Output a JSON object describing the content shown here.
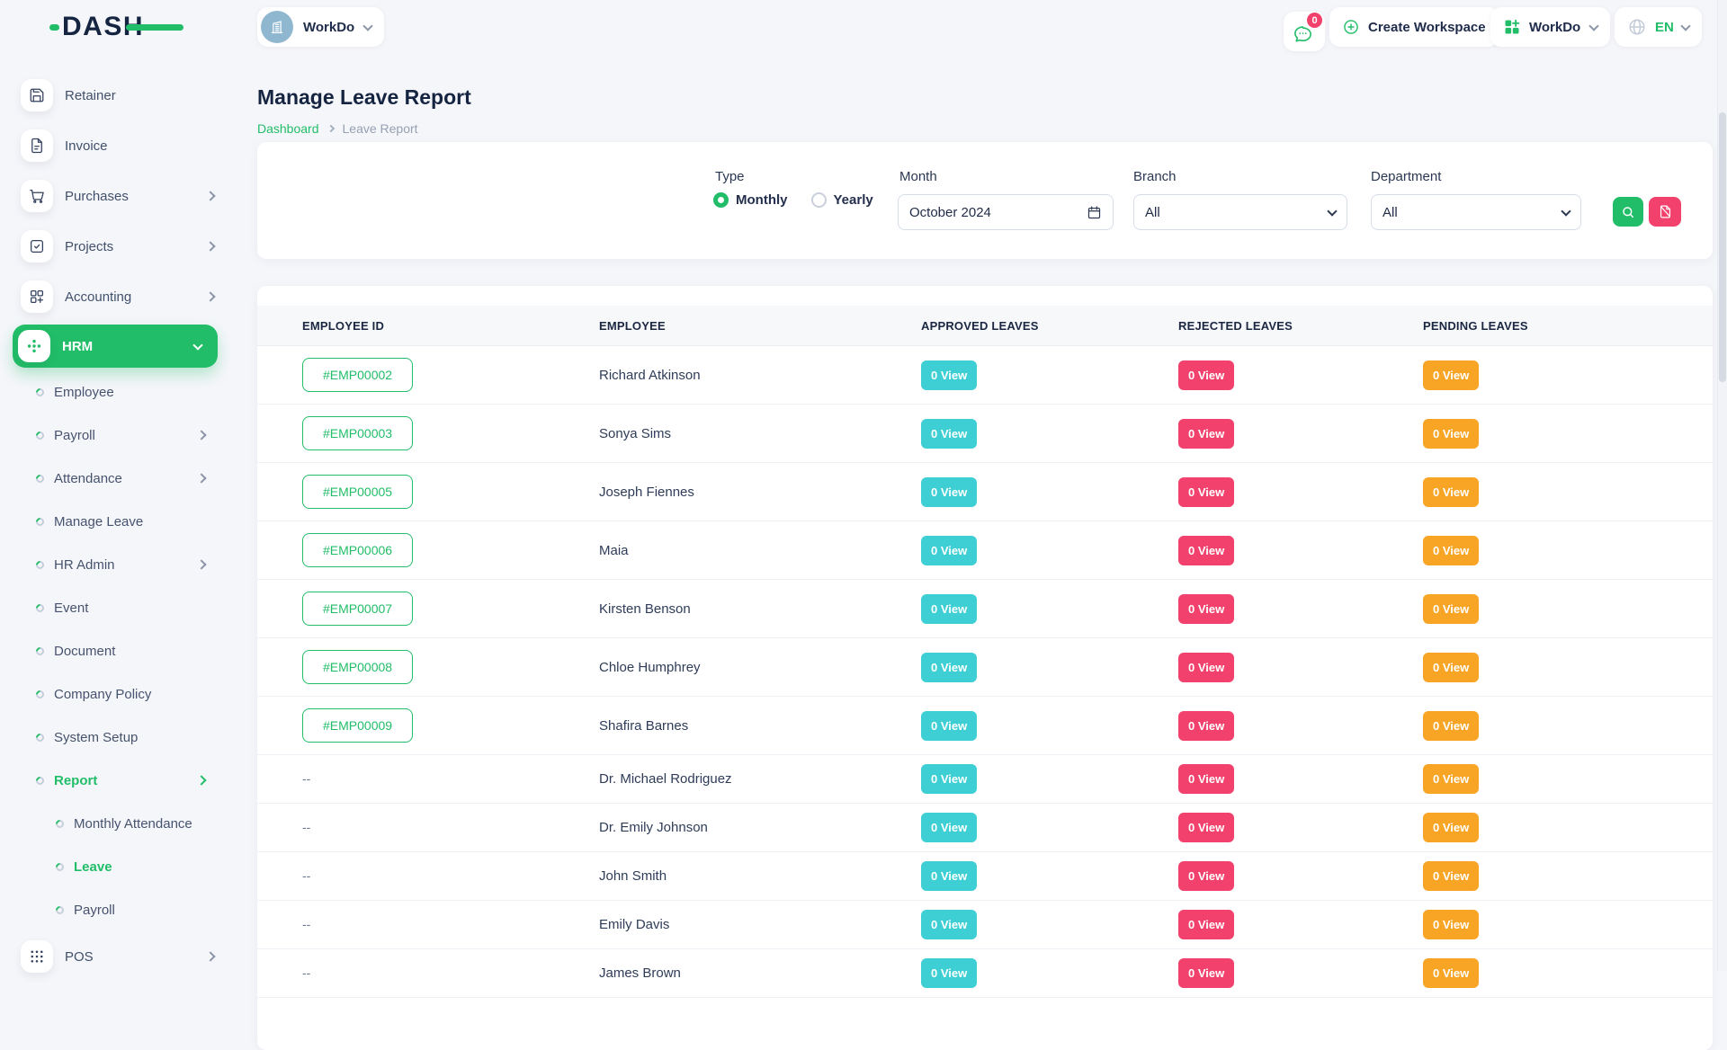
{
  "brand": {
    "logo_text": "DASH"
  },
  "topbar": {
    "workspace": {
      "label": "WorkDo"
    },
    "messages_badge": "0",
    "create_workspace": "Create Workspace",
    "app_menu": "WorkDo",
    "language": "EN"
  },
  "sidebar": {
    "items": [
      {
        "label": "Retainer",
        "icon": "save"
      },
      {
        "label": "Invoice",
        "icon": "invoice"
      },
      {
        "label": "Purchases",
        "icon": "cart",
        "expandable": true
      },
      {
        "label": "Projects",
        "icon": "projects",
        "expandable": true
      },
      {
        "label": "Accounting",
        "icon": "accounting",
        "expandable": true
      },
      {
        "label": "HRM",
        "icon": "hrm",
        "active": true,
        "expanded": true
      }
    ],
    "hrm_children": [
      {
        "label": "Employee"
      },
      {
        "label": "Payroll",
        "expandable": true
      },
      {
        "label": "Attendance",
        "expandable": true
      },
      {
        "label": "Manage Leave"
      },
      {
        "label": "HR Admin",
        "expandable": true
      },
      {
        "label": "Event"
      },
      {
        "label": "Document"
      },
      {
        "label": "Company Policy"
      },
      {
        "label": "System Setup"
      },
      {
        "label": "Report",
        "expandable": true,
        "active": true
      }
    ],
    "report_children": [
      {
        "label": "Monthly Attendance"
      },
      {
        "label": "Leave",
        "active": true
      },
      {
        "label": "Payroll"
      }
    ],
    "items_after": [
      {
        "label": "POS",
        "icon": "pos",
        "expandable": true
      }
    ]
  },
  "page": {
    "title": "Manage Leave Report",
    "breadcrumb": [
      {
        "label": "Dashboard"
      },
      {
        "label": "Leave Report"
      }
    ]
  },
  "filters": {
    "type_label": "Type",
    "type_options": [
      {
        "label": "Monthly",
        "selected": true
      },
      {
        "label": "Yearly",
        "selected": false
      }
    ],
    "month_label": "Month",
    "month_value": "October 2024",
    "branch_label": "Branch",
    "branch_value": "All",
    "department_label": "Department",
    "department_value": "All"
  },
  "table": {
    "columns": [
      "EMPLOYEE ID",
      "EMPLOYEE",
      "APPROVED LEAVES",
      "REJECTED LEAVES",
      "PENDING LEAVES"
    ],
    "rows": [
      {
        "employee_id": "#EMP00002",
        "employee": "Richard Atkinson",
        "approved": "0 View",
        "rejected": "0 View",
        "pending": "0 View"
      },
      {
        "employee_id": "#EMP00003",
        "employee": "Sonya Sims",
        "approved": "0 View",
        "rejected": "0 View",
        "pending": "0 View"
      },
      {
        "employee_id": "#EMP00005",
        "employee": "Joseph Fiennes",
        "approved": "0 View",
        "rejected": "0 View",
        "pending": "0 View"
      },
      {
        "employee_id": "#EMP00006",
        "employee": "Maia",
        "approved": "0 View",
        "rejected": "0 View",
        "pending": "0 View"
      },
      {
        "employee_id": "#EMP00007",
        "employee": "Kirsten Benson",
        "approved": "0 View",
        "rejected": "0 View",
        "pending": "0 View"
      },
      {
        "employee_id": "#EMP00008",
        "employee": "Chloe Humphrey",
        "approved": "0 View",
        "rejected": "0 View",
        "pending": "0 View"
      },
      {
        "employee_id": "#EMP00009",
        "employee": "Shafira Barnes",
        "approved": "0 View",
        "rejected": "0 View",
        "pending": "0 View"
      },
      {
        "employee_id": "--",
        "employee": "Dr. Michael Rodriguez",
        "approved": "0 View",
        "rejected": "0 View",
        "pending": "0 View"
      },
      {
        "employee_id": "--",
        "employee": "Dr. Emily Johnson",
        "approved": "0 View",
        "rejected": "0 View",
        "pending": "0 View"
      },
      {
        "employee_id": "--",
        "employee": "John Smith",
        "approved": "0 View",
        "rejected": "0 View",
        "pending": "0 View"
      },
      {
        "employee_id": "--",
        "employee": "Emily Davis",
        "approved": "0 View",
        "rejected": "0 View",
        "pending": "0 View"
      },
      {
        "employee_id": "--",
        "employee": "James Brown",
        "approved": "0 View",
        "rejected": "0 View",
        "pending": "0 View"
      }
    ]
  },
  "colors": {
    "accent_green": "#22bd68",
    "approved_badge": "#3ecfd5",
    "rejected_badge": "#f1416c",
    "pending_badge": "#f8a425",
    "brand_navy": "#152441"
  }
}
